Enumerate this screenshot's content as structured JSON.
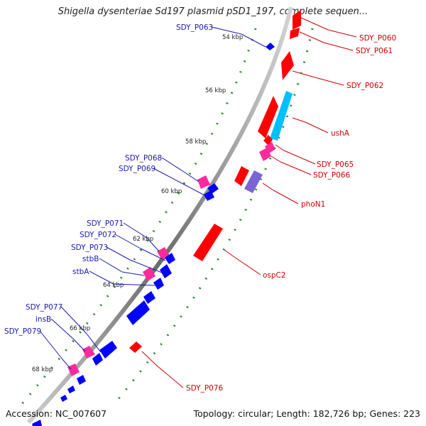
{
  "title": "Shigella dysenteriae Sd197 plasmid pSD1_197, complete sequen...",
  "footer": {
    "accession": "Accession: NC_007607",
    "summary": "Topology: circular; Length: 182,726 bp; Genes: 223"
  },
  "colors": {
    "forward_gene": "#ff0000",
    "reverse_gene": "#0000ff",
    "forward_label": "#cc0000",
    "reverse_label": "#1a1aaa",
    "cyan_feature": "#00bfff",
    "purple_feature": "#7a64d6",
    "pink_feature": "#ff2a9c",
    "tick_green": "#2a8a2a"
  },
  "backbone_ticks": [
    "54 kbp",
    "56 kbp",
    "58 kbp",
    "60 kbp",
    "62 kbp",
    "64 kbp",
    "66 kbp",
    "68 kbp"
  ],
  "labels_forward": [
    "SDY_P060",
    "SDY_P061",
    "SDY_P062",
    "ushA",
    "SDY_P065",
    "SDY_P066",
    "phoN1",
    "ospC2",
    "SDY_P076"
  ],
  "labels_reverse": [
    "SDY_P063",
    "SDY_P068",
    "SDY_P069",
    "SDY_P071",
    "SDY_P072",
    "SDY_P073",
    "stbB",
    "stbA",
    "SDY_P077",
    "insB",
    "SDY_P079"
  ]
}
